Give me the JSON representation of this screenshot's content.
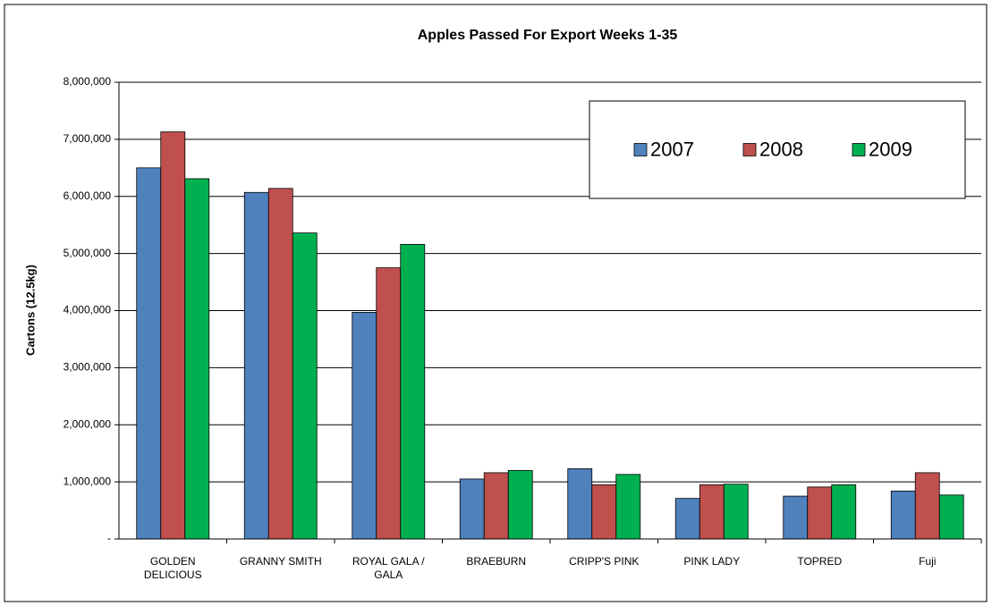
{
  "chart_data": {
    "type": "bar",
    "title": "Apples Passed For Export   Weeks 1-35",
    "y_label": "Cartons (12.5kg)",
    "categories": [
      "GOLDEN DELICIOUS",
      "GRANNY SMITH",
      "ROYAL GALA / GALA",
      "BRAEBURN",
      "CRIPP'S PINK",
      "PINK LADY",
      "TOPRED",
      "Fuji"
    ],
    "series": [
      {
        "name": "2007",
        "color": "#4f81bd",
        "values": [
          6500000,
          6070000,
          3970000,
          1050000,
          1230000,
          710000,
          750000,
          840000
        ]
      },
      {
        "name": "2008",
        "color": "#c0504d",
        "values": [
          7130000,
          6140000,
          4750000,
          1160000,
          950000,
          950000,
          910000,
          1160000
        ]
      },
      {
        "name": "2009",
        "color": "#00b050",
        "values": [
          6310000,
          5360000,
          5160000,
          1200000,
          1130000,
          960000,
          950000,
          770000
        ]
      }
    ],
    "ylim": [
      0,
      8000000
    ],
    "yticks": [
      {
        "value": 0,
        "label": "-"
      },
      {
        "value": 1000000,
        "label": "1,000,000"
      },
      {
        "value": 2000000,
        "label": "2,000,000"
      },
      {
        "value": 3000000,
        "label": "3,000,000"
      },
      {
        "value": 4000000,
        "label": "4,000,000"
      },
      {
        "value": 5000000,
        "label": "5,000,000"
      },
      {
        "value": 6000000,
        "label": "6,000,000"
      },
      {
        "value": 7000000,
        "label": "7,000,000"
      },
      {
        "value": 8000000,
        "label": "8,000,000"
      }
    ],
    "grid": true,
    "legend": "upper right"
  }
}
